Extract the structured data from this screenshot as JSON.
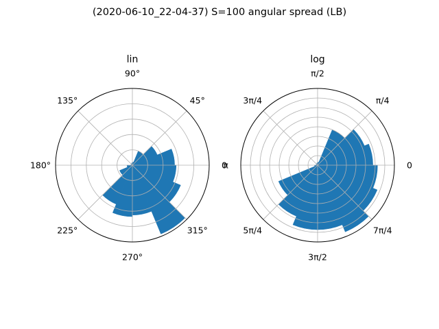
{
  "figure": {
    "suptitle": "(2020-06-10_22-04-37) S=100 angular spread (LB)"
  },
  "colors": {
    "bar": "#1f77b4",
    "grid": "#b0b0b0",
    "spine": "#000000"
  },
  "chart_data": [
    {
      "type": "polar-bar",
      "title": "lin",
      "theta_tick_labels": [
        "0",
        "45°",
        "90°",
        "135°",
        "180°",
        "225°",
        "270°",
        "315°"
      ],
      "theta_tick_degrees": [
        0,
        45,
        90,
        135,
        180,
        225,
        270,
        315
      ],
      "radial_grid_fractions": [
        0.2,
        0.4,
        0.6,
        0.8
      ],
      "bin_width_deg": 22.5,
      "bins": [
        {
          "start_deg": 0,
          "value": 0.55
        },
        {
          "start_deg": 22.5,
          "value": 0.35
        },
        {
          "start_deg": 45,
          "value": 0.2
        },
        {
          "start_deg": 67.5,
          "value": 0.04
        },
        {
          "start_deg": 90,
          "value": 0.03
        },
        {
          "start_deg": 112.5,
          "value": 0.02
        },
        {
          "start_deg": 135,
          "value": 0.02
        },
        {
          "start_deg": 157.5,
          "value": 0.02
        },
        {
          "start_deg": 180,
          "value": 0.07
        },
        {
          "start_deg": 202.5,
          "value": 0.18
        },
        {
          "start_deg": 225,
          "value": 0.55
        },
        {
          "start_deg": 247.5,
          "value": 0.67
        },
        {
          "start_deg": 270,
          "value": 0.65
        },
        {
          "start_deg": 292.5,
          "value": 0.97
        },
        {
          "start_deg": 315,
          "value": 0.68
        },
        {
          "start_deg": 337.5,
          "value": 0.57
        }
      ]
    },
    {
      "type": "polar-bar",
      "title": "log",
      "theta_tick_labels": [
        "0",
        "π/4",
        "π/2",
        "3π/4",
        "π",
        "5π/4",
        "3π/2",
        "7π/4"
      ],
      "theta_tick_degrees": [
        0,
        45,
        90,
        135,
        180,
        225,
        270,
        315
      ],
      "radial_grid_fractions": [
        0.125,
        0.25,
        0.375,
        0.5,
        0.625,
        0.75,
        0.875
      ],
      "bin_width_deg": 22.5,
      "bins": [
        {
          "start_deg": 0,
          "value": 0.72
        },
        {
          "start_deg": 22.5,
          "value": 0.66
        },
        {
          "start_deg": 45,
          "value": 0.5
        },
        {
          "start_deg": 67.5,
          "value": 0.04
        },
        {
          "start_deg": 90,
          "value": 0.03
        },
        {
          "start_deg": 112.5,
          "value": 0.02
        },
        {
          "start_deg": 135,
          "value": 0.02
        },
        {
          "start_deg": 157.5,
          "value": 0.02
        },
        {
          "start_deg": 180,
          "value": 0.04
        },
        {
          "start_deg": 202.5,
          "value": 0.55
        },
        {
          "start_deg": 225,
          "value": 0.72
        },
        {
          "start_deg": 247.5,
          "value": 0.84
        },
        {
          "start_deg": 270,
          "value": 0.84
        },
        {
          "start_deg": 292.5,
          "value": 0.94
        },
        {
          "start_deg": 315,
          "value": 0.84
        },
        {
          "start_deg": 337.5,
          "value": 0.78
        }
      ]
    }
  ]
}
